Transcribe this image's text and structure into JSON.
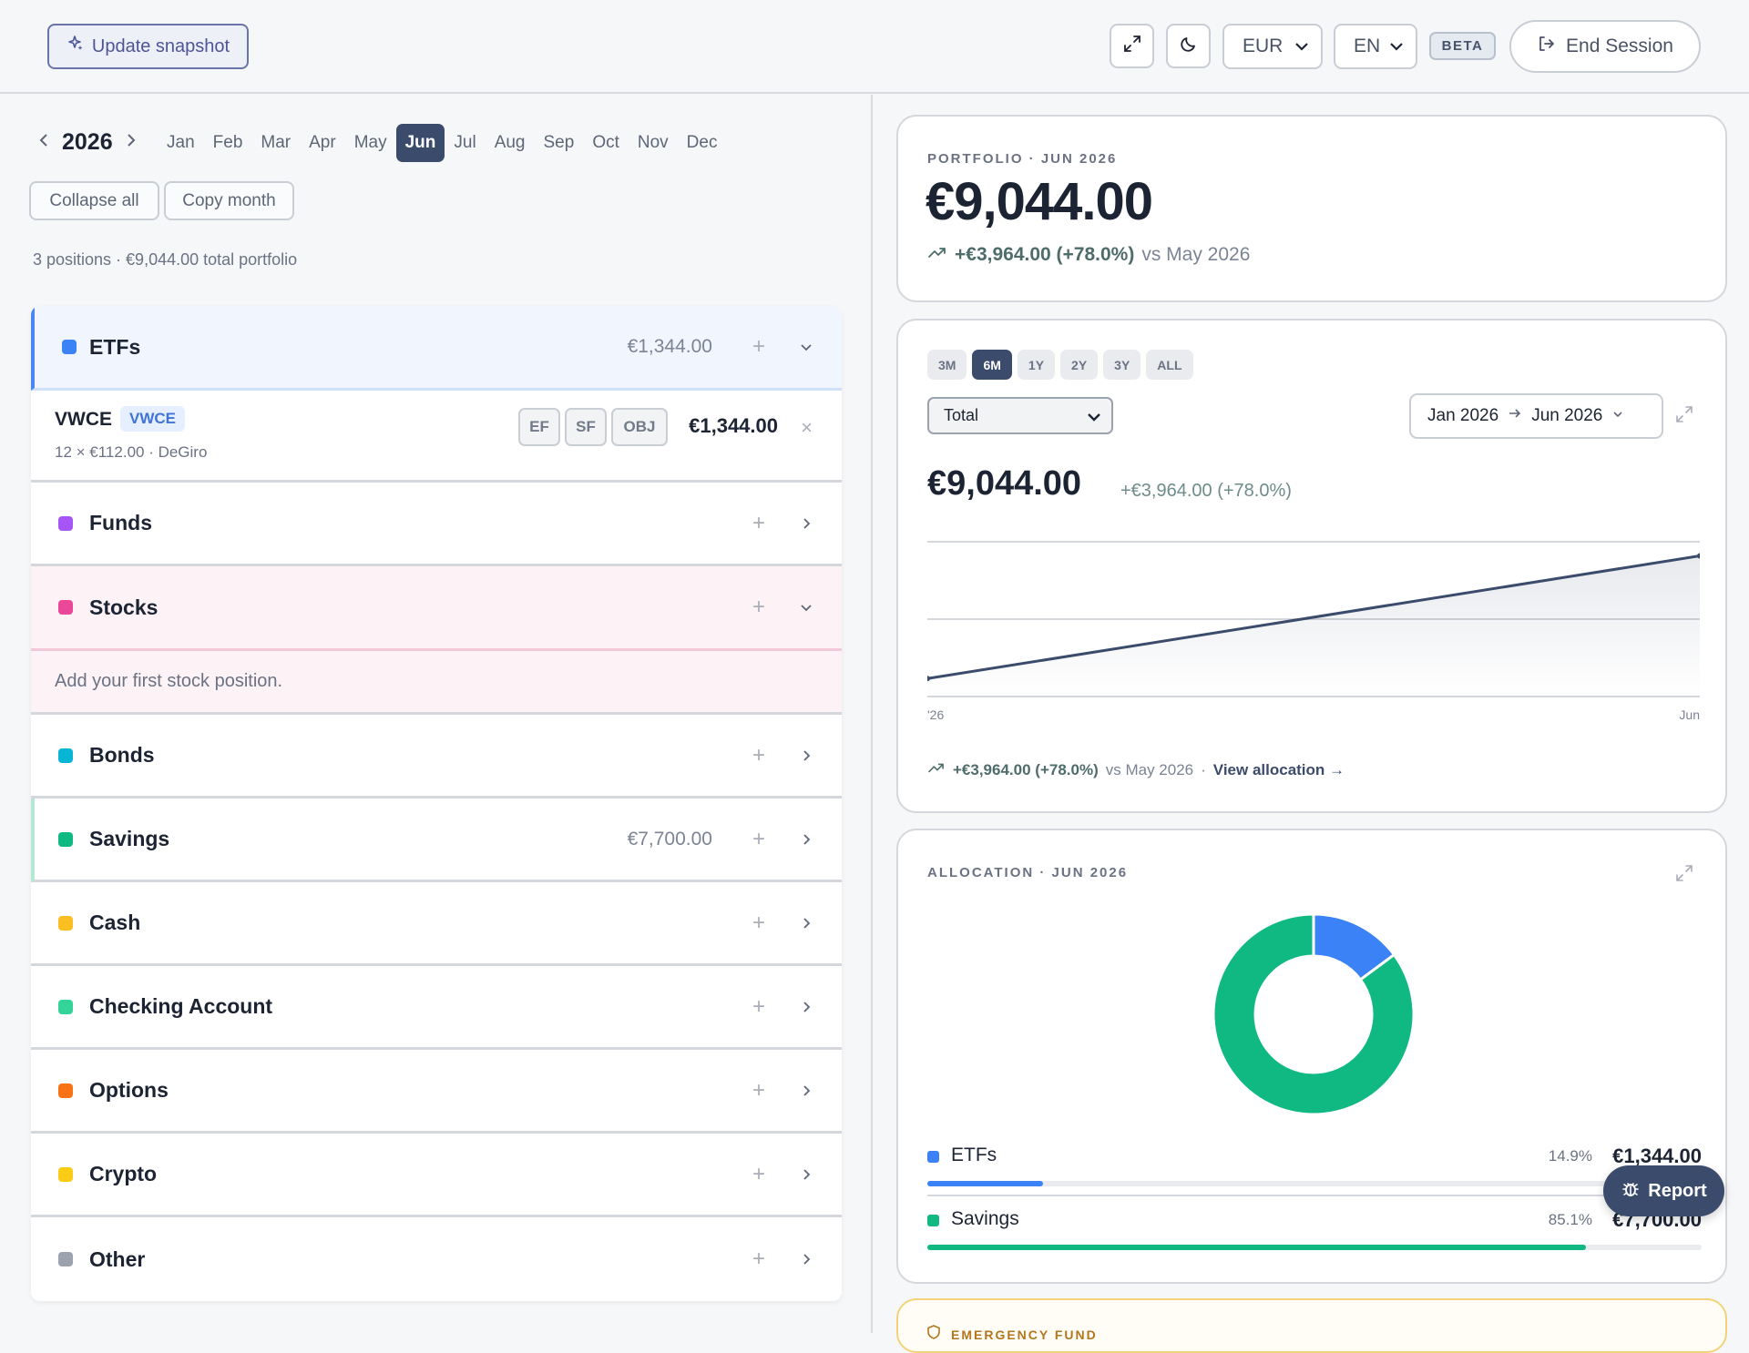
{
  "header": {
    "snapshot_label": "Update snapshot",
    "currency": "EUR",
    "language": "EN",
    "beta_label": "BETA",
    "end_session_label": "End Session",
    "icons": [
      "sparkle-icon",
      "expand-icon",
      "moon-icon",
      "logout-icon"
    ]
  },
  "calendar": {
    "year": "2026",
    "months": [
      "Jan",
      "Feb",
      "Mar",
      "Apr",
      "May",
      "Jun",
      "Jul",
      "Aug",
      "Sep",
      "Oct",
      "Nov",
      "Dec"
    ],
    "active_month": "Jun",
    "collapse_all_label": "Collapse all",
    "copy_month_label": "Copy month",
    "summary": "3 positions · €9,044.00 total portfolio"
  },
  "categories": [
    {
      "label": "ETFs",
      "color": "#3b82f6",
      "value": "€1,344.00",
      "expanded": true
    },
    {
      "label": "Funds",
      "color": "#a855f7",
      "value": "",
      "expanded": false
    },
    {
      "label": "Stocks",
      "color": "#ec4899",
      "value": "",
      "expanded": true
    },
    {
      "label": "Bonds",
      "color": "#06b6d4",
      "value": "",
      "expanded": false
    },
    {
      "label": "Savings",
      "color": "#10b981",
      "value": "€7,700.00",
      "expanded": false
    },
    {
      "label": "Cash",
      "color": "#fbbf24",
      "value": "",
      "expanded": false
    },
    {
      "label": "Checking Account",
      "color": "#34d399",
      "value": "",
      "expanded": false
    },
    {
      "label": "Options",
      "color": "#f97316",
      "value": "",
      "expanded": false
    },
    {
      "label": "Crypto",
      "color": "#facc15",
      "value": "",
      "expanded": false
    },
    {
      "label": "Other",
      "color": "#9ca3af",
      "value": "",
      "expanded": false
    }
  ],
  "etf_position": {
    "ticker": "VWCE",
    "badge": "VWCE",
    "sub": "12 × €112.00 · DeGiro",
    "tags": [
      "EF",
      "SF",
      "OBJ"
    ],
    "value": "€1,344.00"
  },
  "stocks_empty": "Add your first stock position.",
  "portfolio": {
    "eyebrow": "PORTFOLIO · JUN 2026",
    "value": "€9,044.00",
    "delta": "+€3,964.00 (+78.0%)",
    "comparison": "vs May 2026"
  },
  "history": {
    "ranges": [
      "3M",
      "6M",
      "1Y",
      "2Y",
      "3Y",
      "ALL"
    ],
    "active_range": "6M",
    "series_select": "Total",
    "range_from": "Jan 2026",
    "range_to": "Jun 2026",
    "value": "€9,044.00",
    "delta": "+€3,964.00 (+78.0%)",
    "x_start_label": "'26",
    "x_end_label": "Jun",
    "footer_delta": "+€3,964.00 (+78.0%)",
    "footer_comparison": "vs May 2026",
    "footer_sep": "·",
    "view_allocation": "View allocation →"
  },
  "chart_data": [
    {
      "type": "area",
      "x": [
        "Jan 2026",
        "Jun 2026"
      ],
      "series": [
        {
          "values": [
            5080,
            9044
          ]
        }
      ],
      "ylim": [
        4500,
        9500
      ],
      "grid": true
    },
    {
      "type": "pie",
      "categories": [
        "ETFs",
        "Savings"
      ],
      "values": [
        1344,
        7700
      ],
      "colors": [
        "#3b82f6",
        "#10b981"
      ]
    }
  ],
  "allocation": {
    "eyebrow": "ALLOCATION · JUN 2026",
    "items": [
      {
        "label": "ETFs",
        "pct": "14.9%",
        "fraction": 0.149,
        "value": "€1,344.00",
        "color": "#3b82f6"
      },
      {
        "label": "Savings",
        "pct": "85.1%",
        "fraction": 0.851,
        "value": "€7,700.00",
        "color": "#10b981"
      }
    ]
  },
  "report_label": "Report",
  "emergency_fund_label": "EMERGENCY FUND"
}
